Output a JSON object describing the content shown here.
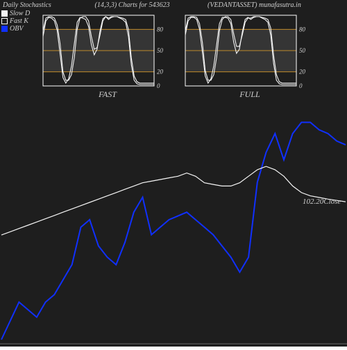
{
  "background_color": "#1e1e1e",
  "text_color": "#d0d0d0",
  "grid_color_major": "#c08a2a",
  "grid_color_minor": "#444444",
  "stoch_bg_light": "#353535",
  "stoch_bg_dark": "#1e1e1e",
  "line_white": "#f5f5f5",
  "line_blue": "#1030ff",
  "header": {
    "title1": "Daily Stochastics",
    "title2": "(14,3,3) Charts for 543623",
    "title3": "(VEDANTASSET) munafasutra.in"
  },
  "legend": {
    "slow_d": {
      "label": "Slow  D",
      "fill": "#f5f5f5"
    },
    "fast_k": {
      "label": "Fast K",
      "fill": "#1e1e1e"
    },
    "obv": {
      "label": "OBV",
      "fill": "#1030ff"
    }
  },
  "stochastic": {
    "type": "line",
    "ylim": [
      0,
      100
    ],
    "yticks": [
      0,
      20,
      50,
      80
    ],
    "fast_label": "FAST",
    "full_label": "FULL",
    "frame_color": "#ffffff",
    "band_color": "#353535",
    "series_fast": {
      "slowd": [
        78,
        96,
        98,
        98,
        96,
        86,
        60,
        20,
        8,
        8,
        16,
        40,
        80,
        96,
        98,
        98,
        92,
        70,
        52,
        54,
        72,
        92,
        98,
        96,
        98,
        98,
        98,
        97,
        96,
        94,
        80,
        40,
        14,
        6,
        4,
        4,
        4,
        4,
        4,
        4
      ],
      "fastk": [
        70,
        92,
        97,
        96,
        92,
        78,
        45,
        12,
        4,
        10,
        28,
        60,
        90,
        97,
        96,
        94,
        84,
        58,
        44,
        52,
        78,
        95,
        98,
        94,
        97,
        98,
        98,
        96,
        94,
        90,
        70,
        30,
        8,
        3,
        2,
        2,
        2,
        2,
        2,
        2
      ]
    },
    "series_full": {
      "slowd": [
        78,
        96,
        98,
        98,
        97,
        88,
        62,
        22,
        8,
        8,
        16,
        40,
        78,
        94,
        98,
        98,
        94,
        74,
        56,
        56,
        72,
        90,
        96,
        96,
        98,
        98,
        98,
        97,
        96,
        94,
        82,
        44,
        16,
        6,
        4,
        4,
        4,
        4,
        4,
        4
      ],
      "fastk": [
        72,
        92,
        97,
        97,
        94,
        80,
        48,
        14,
        4,
        10,
        28,
        58,
        88,
        97,
        97,
        96,
        88,
        62,
        46,
        52,
        76,
        94,
        97,
        94,
        97,
        98,
        98,
        96,
        94,
        90,
        72,
        32,
        8,
        3,
        2,
        2,
        2,
        2,
        2,
        2
      ]
    }
  },
  "price_chart": {
    "type": "line",
    "close_label": "102.20Close",
    "close_value": 102.2,
    "xlim": [
      0,
      39
    ],
    "ylim_main": [
      60,
      130
    ],
    "close_line": {
      "color": "#f5f5f5",
      "values": [
        92,
        93,
        94,
        95,
        96,
        97,
        98,
        99,
        100,
        101,
        102,
        103,
        104,
        105,
        106,
        107,
        108,
        108.5,
        109,
        109.5,
        110,
        111,
        110,
        108,
        107.5,
        107,
        107,
        108,
        110,
        112,
        113,
        112,
        110,
        107,
        105,
        104,
        103.5,
        103,
        102.6,
        102.2
      ]
    },
    "obv_line": {
      "color": "#1030ff",
      "values": [
        50,
        55,
        60,
        58,
        56,
        60,
        62,
        66,
        70,
        80,
        82,
        75,
        72,
        70,
        76,
        84,
        88,
        78,
        80,
        82,
        83,
        84,
        82,
        80,
        78,
        75,
        72,
        68,
        72,
        92,
        100,
        105,
        98,
        105,
        108,
        108,
        106,
        105,
        103,
        102
      ]
    },
    "baseline_y": 60,
    "baseline_color": "#666666"
  }
}
